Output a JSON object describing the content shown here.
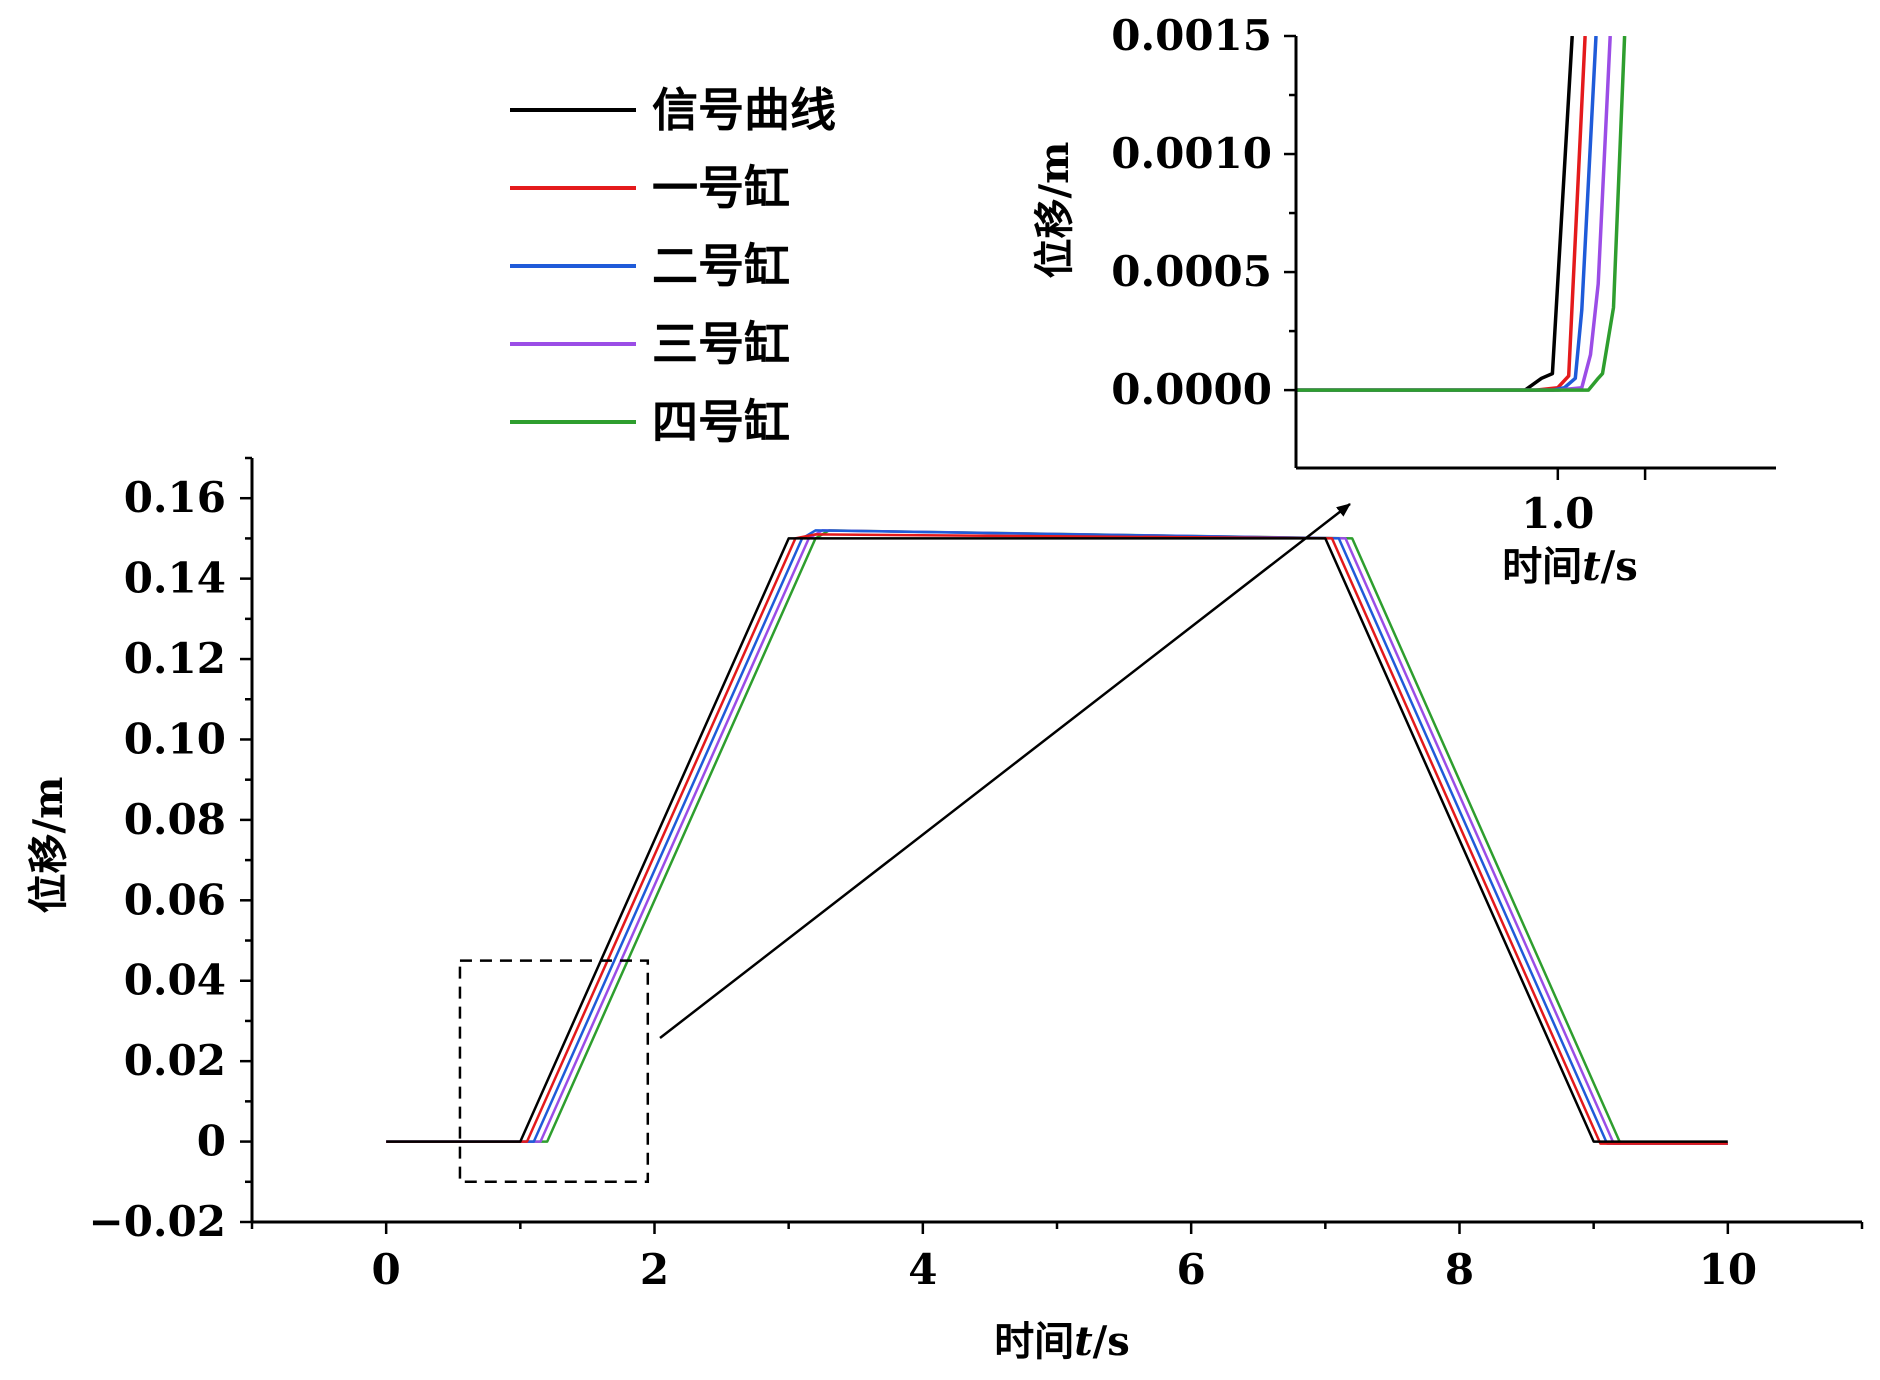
{
  "chart_data": [
    {
      "type": "line",
      "role": "main",
      "xlabel_prefix": "时间",
      "xlabel_var": "t",
      "xlabel_unit": "/s",
      "ylabel": "位移/m",
      "xlim": [
        -1,
        11
      ],
      "ylim": [
        -0.02,
        0.17
      ],
      "x_ticks": [
        "0",
        "2",
        "4",
        "6",
        "8",
        "10"
      ],
      "x_tick_values": [
        0,
        2,
        4,
        6,
        8,
        10
      ],
      "y_ticks": [
        "−0.02",
        "0",
        "0.02",
        "0.04",
        "0.06",
        "0.08",
        "0.10",
        "0.12",
        "0.14",
        "0.16"
      ],
      "y_tick_values": [
        -0.02,
        0,
        0.02,
        0.04,
        0.06,
        0.08,
        0.1,
        0.12,
        0.14,
        0.16
      ],
      "zoom_box": {
        "x": [
          0.55,
          1.95
        ],
        "y": [
          -0.01,
          0.045
        ]
      },
      "grid": false,
      "legend_position": "top-left",
      "series": [
        {
          "name": "信号曲线",
          "color": "#000000",
          "x": [
            0,
            1.0,
            3.0,
            7.0,
            9.0,
            10.0
          ],
          "y": [
            0,
            0,
            0.15,
            0.15,
            0,
            0
          ]
        },
        {
          "name": "一号缸",
          "color": "#e41a1c",
          "x": [
            0,
            1.05,
            3.05,
            3.2,
            7.05,
            9.05,
            10.0
          ],
          "y": [
            0,
            0,
            0.15,
            0.151,
            0.15,
            -0.0005,
            -0.0005
          ]
        },
        {
          "name": "二号缸",
          "color": "#1f5bd9",
          "x": [
            0,
            1.1,
            3.1,
            3.2,
            7.1,
            9.1,
            10.0
          ],
          "y": [
            0,
            0,
            0.15,
            0.152,
            0.15,
            -0.0005,
            -0.0005
          ]
        },
        {
          "name": "三号缸",
          "color": "#9b4de6",
          "x": [
            0,
            1.15,
            3.15,
            3.25,
            7.15,
            9.15,
            10.0
          ],
          "y": [
            0,
            0,
            0.15,
            0.152,
            0.15,
            -0.0005,
            -0.0005
          ]
        },
        {
          "name": "四号缸",
          "color": "#2e9e2e",
          "x": [
            0,
            1.2,
            3.2,
            3.3,
            7.2,
            9.2,
            10.0
          ],
          "y": [
            0,
            0,
            0.15,
            0.152,
            0.15,
            -0.0005,
            -0.0005
          ]
        }
      ]
    },
    {
      "type": "line",
      "role": "inset",
      "xlabel_prefix": "时间",
      "xlabel_var": "t",
      "xlabel_unit": "/s",
      "ylabel": "位移/m",
      "xlim": [
        0.88,
        1.1
      ],
      "ylim": [
        -0.00033,
        0.0015
      ],
      "x_ticks": [
        "1.0"
      ],
      "x_tick_values": [
        1.0
      ],
      "x_minor_tick_values": [
        1.04
      ],
      "y_ticks": [
        "0.0000",
        "0.0005",
        "0.0010",
        "0.0015"
      ],
      "y_tick_values": [
        0,
        0.0005,
        0.001,
        0.0015
      ],
      "grid": false,
      "series": [
        {
          "name": "信号曲线",
          "color": "#000000",
          "x": [
            0.88,
            0.985,
            0.9925,
            0.9975,
            1.0066
          ],
          "y": [
            0,
            0,
            5e-05,
            7e-05,
            0.0015
          ]
        },
        {
          "name": "一号缸",
          "color": "#e41a1c",
          "x": [
            0.88,
            0.99,
            1.0,
            1.005,
            1.0125
          ],
          "y": [
            0,
            0,
            1e-05,
            6e-05,
            0.0015
          ]
        },
        {
          "name": "二号缸",
          "color": "#1f5bd9",
          "x": [
            0.88,
            0.998,
            1.003,
            1.008,
            1.011,
            1.0175
          ],
          "y": [
            0,
            0,
            1e-05,
            5e-05,
            0.00034,
            0.0015
          ]
        },
        {
          "name": "三号缸",
          "color": "#9b4de6",
          "x": [
            0.88,
            1.0,
            1.011,
            1.015,
            1.0185,
            1.024
          ],
          "y": [
            0,
            0,
            1e-05,
            0.00015,
            0.00045,
            0.0015
          ]
        },
        {
          "name": "四号缸",
          "color": "#2e9e2e",
          "x": [
            0.88,
            1.014,
            1.0185,
            1.0205,
            1.0255,
            1.0306
          ],
          "y": [
            0,
            0,
            5e-05,
            7e-05,
            0.00035,
            0.0015
          ]
        }
      ]
    }
  ]
}
